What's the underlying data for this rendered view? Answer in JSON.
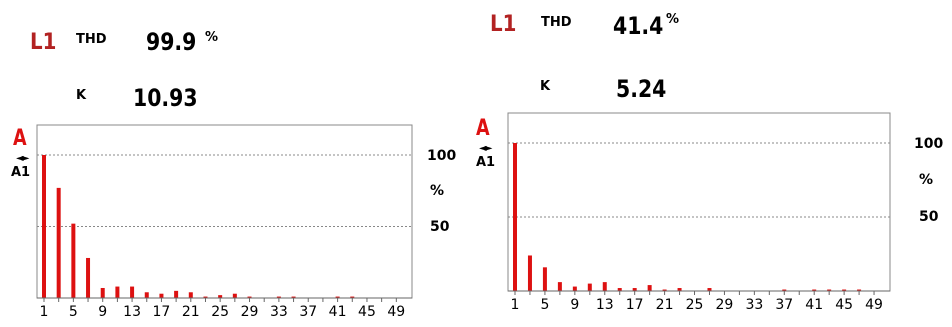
{
  "colors": {
    "accent": "#b22222",
    "bars": "#dd1111",
    "grid": "#888888"
  },
  "panels": [
    {
      "phase": "L1",
      "thd_label": "THD",
      "thd_value": "99.9",
      "thd_unit": "%",
      "k_label": "K",
      "k_value": "10.93",
      "amp_symbol": "A",
      "arrow_icon": "◄►",
      "channel": "A1",
      "axis_100": "100",
      "axis_unit": "%",
      "axis_50": "50",
      "chart_data": {
        "type": "bar",
        "categories": [
          "1",
          "3",
          "5",
          "7",
          "9",
          "11",
          "13",
          "15",
          "17",
          "19",
          "21",
          "23",
          "25",
          "27",
          "29",
          "31",
          "33",
          "35",
          "37",
          "39",
          "41",
          "43",
          "45",
          "47",
          "49"
        ],
        "x_tick_labels": [
          "1",
          "5",
          "9",
          "13",
          "17",
          "21",
          "25",
          "29",
          "33",
          "37",
          "41",
          "45",
          "49"
        ],
        "values": [
          100,
          77,
          52,
          28,
          7,
          8,
          8,
          4,
          3,
          5,
          4,
          1,
          2,
          3,
          1,
          0,
          1,
          1,
          0,
          0,
          1,
          1,
          0,
          0,
          0
        ],
        "ylim": [
          0,
          100
        ],
        "gridlines": [
          100,
          50
        ]
      }
    },
    {
      "phase": "L1",
      "thd_label": "THD",
      "thd_value": "41.4",
      "thd_unit": "%",
      "k_label": "K",
      "k_value": "5.24",
      "amp_symbol": "A",
      "arrow_icon": "◄►",
      "channel": "A1",
      "axis_100": "100",
      "axis_unit": "%",
      "axis_50": "50",
      "chart_data": {
        "type": "bar",
        "categories": [
          "1",
          "3",
          "5",
          "7",
          "9",
          "11",
          "13",
          "15",
          "17",
          "19",
          "21",
          "23",
          "25",
          "27",
          "29",
          "31",
          "33",
          "35",
          "37",
          "39",
          "41",
          "43",
          "45",
          "47",
          "49"
        ],
        "x_tick_labels": [
          "1",
          "5",
          "9",
          "13",
          "17",
          "21",
          "25",
          "29",
          "33",
          "37",
          "41",
          "45",
          "49"
        ],
        "values": [
          100,
          24,
          16,
          6,
          3,
          5,
          6,
          2,
          2,
          4,
          1,
          2,
          0,
          2,
          0,
          0,
          0,
          0,
          1,
          0,
          1,
          1,
          1,
          1,
          0
        ],
        "ylim": [
          0,
          100
        ],
        "gridlines": [
          100,
          50
        ]
      }
    }
  ]
}
